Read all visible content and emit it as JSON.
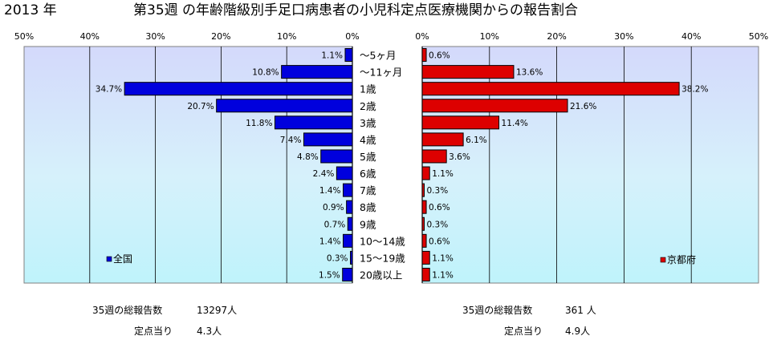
{
  "title": {
    "year": "2013 年",
    "main": "第35週 の年齢階級別手足口病患者の小児科定点医療機関からの報告割合"
  },
  "footer": {
    "left": {
      "total_label": "35週の総報告数",
      "total_value": "13297人",
      "per_label": "定点当り",
      "per_value": "4.3人"
    },
    "right": {
      "total_label": "35週の総報告数",
      "total_value": "361 人",
      "per_label": "定点当り",
      "per_value": "4.9人"
    }
  },
  "chart_data": {
    "type": "bar",
    "orientation": "horizontal-butterfly",
    "categories": [
      "～5ヶ月",
      "～11ヶ月",
      "1歳",
      "2歳",
      "3歳",
      "4歳",
      "5歳",
      "6歳",
      "7歳",
      "8歳",
      "9歳",
      "10～14歳",
      "15～19歳",
      "20歳以上"
    ],
    "axis_ticks": [
      "50%",
      "40%",
      "30%",
      "20%",
      "10%",
      "0%"
    ],
    "axis_ticks_right": [
      "0%",
      "10%",
      "20%",
      "30%",
      "40%",
      "50%"
    ],
    "xlim": [
      0,
      50
    ],
    "series": [
      {
        "name": "全国",
        "side": "left",
        "color": "#0000dd",
        "values": [
          1.1,
          10.8,
          34.7,
          20.7,
          11.8,
          7.4,
          4.8,
          2.4,
          1.4,
          0.9,
          0.7,
          1.4,
          0.3,
          1.5
        ],
        "labels": [
          "1.1%",
          "10.8%",
          "34.7%",
          "20.7%",
          "11.8%",
          "7.4%",
          "4.8%",
          "2.4%",
          "1.4%",
          "0.9%",
          "0.7%",
          "1.4%",
          "0.3%",
          "1.5%"
        ]
      },
      {
        "name": "京都府",
        "side": "right",
        "color": "#dd0000",
        "values": [
          0.6,
          13.6,
          38.2,
          21.6,
          11.4,
          6.1,
          3.6,
          1.1,
          0.3,
          0.6,
          0.3,
          0.6,
          1.1,
          1.1
        ],
        "labels": [
          "0.6%",
          "13.6%",
          "38.2%",
          "21.6%",
          "11.4%",
          "6.1%",
          "3.6%",
          "1.1%",
          "0.3%",
          "0.6%",
          "0.3%",
          "0.6%",
          "1.1%",
          "1.1%"
        ]
      }
    ],
    "legend": {
      "left": "bottom-left",
      "right": "bottom-right"
    },
    "grid": true
  }
}
